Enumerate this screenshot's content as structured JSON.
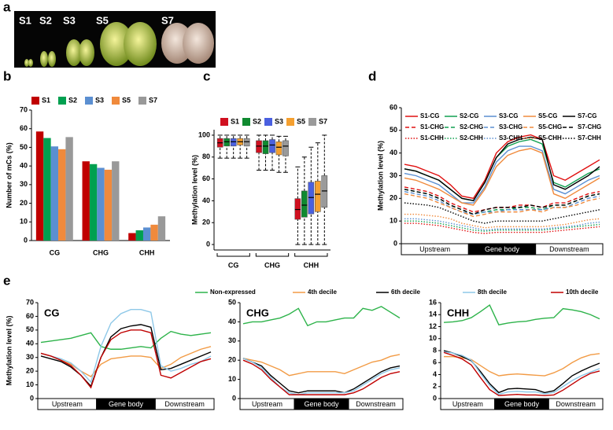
{
  "panel_labels": [
    "a",
    "b",
    "c",
    "d",
    "e"
  ],
  "photo": {
    "labels": [
      "S1",
      "S2",
      "S3",
      "S5",
      "S7"
    ]
  },
  "chart_data": [
    {
      "type": "bar",
      "ylabel": "Number of mCs (%)",
      "categories": [
        "CG",
        "CHG",
        "CHH"
      ],
      "ylim": [
        0,
        70
      ],
      "yticks": [
        0,
        10,
        20,
        30,
        40,
        50,
        60,
        70
      ],
      "series": [
        {
          "name": "S1",
          "color": "#c00000",
          "values": [
            58.5,
            42.5,
            4
          ]
        },
        {
          "name": "S2",
          "color": "#00a050",
          "values": [
            55,
            41,
            5.5
          ]
        },
        {
          "name": "S3",
          "color": "#5b8fd1",
          "values": [
            50.5,
            39,
            7
          ]
        },
        {
          "name": "S5",
          "color": "#f08a3c",
          "values": [
            49,
            38,
            8.5
          ]
        },
        {
          "name": "S7",
          "color": "#999999",
          "values": [
            55.5,
            42.5,
            13
          ]
        }
      ]
    },
    {
      "type": "box",
      "ylabel": "Methylation level (%)",
      "categories": [
        "CG",
        "CHG",
        "CHH"
      ],
      "ylim": [
        -5,
        105
      ],
      "yticks": [
        0,
        20,
        40,
        60,
        80,
        100
      ],
      "series": [
        {
          "name": "S1",
          "color": "#d01020",
          "boxes": [
            [
              79,
              89,
              93,
              97,
              100
            ],
            [
              68,
              84,
              90,
              95,
              100
            ],
            [
              0,
              23,
              32,
              42,
              71
            ]
          ]
        },
        {
          "name": "S2",
          "color": "#108a30",
          "boxes": [
            [
              79,
              90,
              94,
              97,
              100
            ],
            [
              68,
              83,
              90,
              95,
              100
            ],
            [
              0,
              25,
              36,
              49,
              80
            ]
          ]
        },
        {
          "name": "S3",
          "color": "#4a60e0",
          "boxes": [
            [
              79,
              90,
              94,
              97,
              100
            ],
            [
              68,
              84,
              91,
              96,
              100
            ],
            [
              0,
              28,
              43,
              57,
              89
            ]
          ]
        },
        {
          "name": "S5",
          "color": "#f5a030",
          "boxes": [
            [
              79,
              91,
              94,
              97,
              100
            ],
            [
              66,
              82,
              89,
              94,
              99
            ],
            [
              0,
              30,
              46,
              58,
              93
            ]
          ]
        },
        {
          "name": "S7",
          "color": "#9a9a9a",
          "boxes": [
            [
              79,
              90,
              94,
              97,
              100
            ],
            [
              66,
              81,
              90,
              95,
              99
            ],
            [
              0,
              34,
              49,
              63,
              100
            ]
          ]
        }
      ]
    },
    {
      "type": "line",
      "ylabel": "Methylation level (%)",
      "regions": [
        "Upstream",
        "Gene body",
        "Downstream"
      ],
      "ylim": [
        0,
        60
      ],
      "yticks": [
        0,
        10,
        20,
        30,
        40,
        50,
        60
      ],
      "series": [
        {
          "name": "S1-CG",
          "color": "#e01010",
          "linestyle": "solid",
          "values": [
            35,
            34,
            32,
            30,
            26,
            21,
            20,
            28,
            40,
            45,
            47,
            48,
            46,
            30,
            28,
            31,
            34,
            37
          ]
        },
        {
          "name": "S2-CG",
          "color": "#10a050",
          "linestyle": "solid",
          "values": [
            33,
            32,
            30,
            28,
            24,
            20,
            19,
            27,
            38,
            43,
            45,
            46,
            44,
            27,
            25,
            28,
            31,
            33
          ]
        },
        {
          "name": "S3-CG",
          "color": "#5b8fd1",
          "linestyle": "solid",
          "values": [
            31,
            30,
            28,
            26,
            22,
            18,
            18,
            25,
            36,
            41,
            43,
            43,
            41,
            24,
            22,
            25,
            28,
            30
          ]
        },
        {
          "name": "S5-CG",
          "color": "#f08a3c",
          "linestyle": "solid",
          "values": [
            29,
            28,
            26,
            24,
            21,
            18,
            17,
            24,
            34,
            39,
            41,
            42,
            40,
            22,
            20,
            23,
            26,
            29
          ]
        },
        {
          "name": "S7-CG",
          "color": "#000000",
          "linestyle": "solid",
          "values": [
            33,
            32,
            30,
            28,
            24,
            20,
            19,
            27,
            38,
            44,
            46,
            47,
            46,
            26,
            24,
            27,
            30,
            34
          ]
        },
        {
          "name": "S1-CHG",
          "color": "#e01010",
          "linestyle": "dashed",
          "values": [
            25,
            24,
            23,
            21,
            18,
            16,
            14,
            15,
            16,
            16,
            17,
            17,
            16,
            18,
            18,
            20,
            22,
            23
          ]
        },
        {
          "name": "S2-CHG",
          "color": "#10a050",
          "linestyle": "dashed",
          "values": [
            24,
            23,
            22,
            20,
            17,
            15,
            13,
            14,
            15,
            15,
            16,
            16,
            15,
            17,
            17,
            19,
            21,
            22
          ]
        },
        {
          "name": "S3-CHG",
          "color": "#5b8fd1",
          "linestyle": "dashed",
          "values": [
            23,
            22,
            21,
            19,
            16,
            14,
            13,
            14,
            14,
            15,
            15,
            15,
            15,
            16,
            16,
            18,
            20,
            21
          ]
        },
        {
          "name": "S5-CHG",
          "color": "#f08a3c",
          "linestyle": "dashed",
          "values": [
            22,
            21,
            20,
            18,
            16,
            14,
            12,
            13,
            14,
            14,
            14,
            15,
            14,
            16,
            16,
            17,
            19,
            20
          ]
        },
        {
          "name": "S7-CHG",
          "color": "#000000",
          "linestyle": "dashed",
          "values": [
            24,
            23,
            22,
            20,
            17,
            15,
            13,
            15,
            16,
            16,
            16,
            17,
            16,
            17,
            17,
            19,
            21,
            22
          ]
        },
        {
          "name": "S1-CHH",
          "color": "#e01010",
          "linestyle": "dotted",
          "values": [
            9,
            9,
            8.5,
            8,
            7,
            6,
            5,
            4.5,
            5,
            5,
            5,
            5,
            5,
            5.5,
            6,
            6.5,
            7,
            7.5
          ]
        },
        {
          "name": "S2-CHH",
          "color": "#10a050",
          "linestyle": "dotted",
          "values": [
            10,
            10,
            9.5,
            9,
            8,
            7,
            6,
            5.5,
            6,
            6,
            6,
            6,
            6,
            6.5,
            7,
            7.5,
            8,
            8.5
          ]
        },
        {
          "name": "S3-CHH",
          "color": "#5b8fd1",
          "linestyle": "dotted",
          "values": [
            11,
            11,
            10.5,
            10,
            9,
            8,
            7,
            6,
            6.5,
            6.5,
            6.5,
            6.5,
            6.5,
            7,
            7.5,
            8,
            9,
            9.5
          ]
        },
        {
          "name": "S5-CHH",
          "color": "#f08a3c",
          "linestyle": "dotted",
          "values": [
            13,
            13,
            12.5,
            12,
            11,
            9,
            8,
            7,
            7.5,
            7.5,
            7.5,
            7.5,
            7.5,
            8,
            8.5,
            9.5,
            10.5,
            11
          ]
        },
        {
          "name": "S7-CHH",
          "color": "#000000",
          "linestyle": "dotted",
          "values": [
            18,
            17.5,
            17,
            16,
            14,
            12,
            10,
            9,
            10,
            10,
            10,
            10,
            10,
            11,
            12,
            13,
            14,
            15
          ]
        }
      ]
    },
    {
      "type": "line",
      "title": "CG",
      "ylabel": "Methylation level (%)",
      "regions": [
        "Upstream",
        "Gene body",
        "Downstream"
      ],
      "ylim": [
        0,
        70
      ],
      "yticks": [
        0,
        10,
        20,
        30,
        40,
        50,
        60,
        70
      ],
      "series": [
        {
          "name": "Non-expressed",
          "color": "#2db34a",
          "values": [
            41,
            42,
            43,
            44,
            46,
            48,
            38,
            36,
            36,
            37,
            38,
            37,
            44,
            49,
            47,
            46,
            47,
            48
          ]
        },
        {
          "name": "4th decile",
          "color": "#f29b45",
          "values": [
            33,
            31,
            28,
            25,
            20,
            16,
            25,
            29,
            30,
            31,
            31,
            30,
            22,
            25,
            30,
            33,
            36,
            38
          ]
        },
        {
          "name": "6th decile",
          "color": "#000000",
          "values": [
            31,
            29,
            27,
            23,
            17,
            9,
            30,
            45,
            51,
            53,
            54,
            52,
            21,
            22,
            25,
            28,
            31,
            34
          ]
        },
        {
          "name": "8th decile",
          "color": "#8ec8e8",
          "values": [
            33,
            31,
            29,
            26,
            20,
            12,
            38,
            55,
            62,
            65,
            65,
            63,
            24,
            20,
            22,
            25,
            27,
            31
          ]
        },
        {
          "name": "10th decile",
          "color": "#c00000",
          "values": [
            33,
            31,
            28,
            24,
            17,
            8,
            30,
            43,
            48,
            50,
            50,
            48,
            17,
            15,
            19,
            23,
            27,
            29
          ]
        }
      ]
    },
    {
      "type": "line",
      "title": "CHG",
      "regions": [
        "Upstream",
        "Gene body",
        "Downstream"
      ],
      "ylim": [
        0,
        50
      ],
      "yticks": [
        0,
        10,
        20,
        30,
        40,
        50
      ],
      "series": [
        {
          "color": "#2db34a",
          "values": [
            39,
            40,
            40,
            41,
            42,
            44,
            47,
            38,
            40,
            40,
            41,
            42,
            42,
            47,
            46,
            48,
            45,
            42
          ]
        },
        {
          "color": "#f29b45",
          "values": [
            21,
            20,
            19,
            17,
            15,
            12,
            13,
            14,
            14,
            14,
            14,
            13,
            15,
            17,
            19,
            20,
            22,
            23
          ]
        },
        {
          "color": "#000000",
          "values": [
            21,
            19,
            17,
            12,
            8,
            4,
            3,
            4,
            4,
            4,
            4,
            3,
            5,
            8,
            11,
            14,
            16,
            17
          ]
        },
        {
          "color": "#8ec8e8",
          "values": [
            21,
            19,
            16,
            11,
            6,
            3,
            2,
            3,
            3,
            3,
            3,
            3,
            4,
            7,
            10,
            13,
            15,
            16
          ]
        },
        {
          "color": "#c00000",
          "values": [
            20,
            18,
            15,
            10,
            6,
            2,
            2,
            2,
            2,
            2,
            2,
            2,
            3,
            5,
            8,
            11,
            13,
            14
          ]
        }
      ]
    },
    {
      "type": "line",
      "title": "CHH",
      "regions": [
        "Upstream",
        "Gene body",
        "Downstream"
      ],
      "ylim": [
        0,
        16
      ],
      "yticks": [
        0,
        2,
        4,
        6,
        8,
        10,
        12,
        14,
        16
      ],
      "series": [
        {
          "color": "#2db34a",
          "values": [
            12.7,
            12.8,
            13,
            13.5,
            14.5,
            15.6,
            12.3,
            12.6,
            12.8,
            12.9,
            13.2,
            13.4,
            13.5,
            15,
            14.8,
            14.5,
            14,
            13.3
          ]
        },
        {
          "color": "#f29b45",
          "values": [
            7,
            7,
            6.8,
            6.5,
            5.5,
            4.5,
            3.8,
            4,
            4.1,
            4,
            3.9,
            3.8,
            4.3,
            5,
            6,
            6.8,
            7.3,
            7.5
          ]
        },
        {
          "color": "#000000",
          "values": [
            8,
            7.6,
            7,
            6.3,
            4.5,
            2.5,
            1,
            1.6,
            1.7,
            1.6,
            1.5,
            1,
            1.3,
            2.5,
            3.8,
            4.6,
            5.3,
            5.9
          ]
        },
        {
          "color": "#8ec8e8",
          "values": [
            7.8,
            7.6,
            7.2,
            6.4,
            4.2,
            2.2,
            0.7,
            1.1,
            1.2,
            1.1,
            1.1,
            0.8,
            1,
            2,
            3,
            3.8,
            4.4,
            5
          ]
        },
        {
          "color": "#c00000",
          "values": [
            7.7,
            7.2,
            6.6,
            5.6,
            3.5,
            1.5,
            0.5,
            0.6,
            0.7,
            0.6,
            0.6,
            0.5,
            0.6,
            1.4,
            2.4,
            3.4,
            4.2,
            4.6
          ]
        }
      ]
    }
  ]
}
